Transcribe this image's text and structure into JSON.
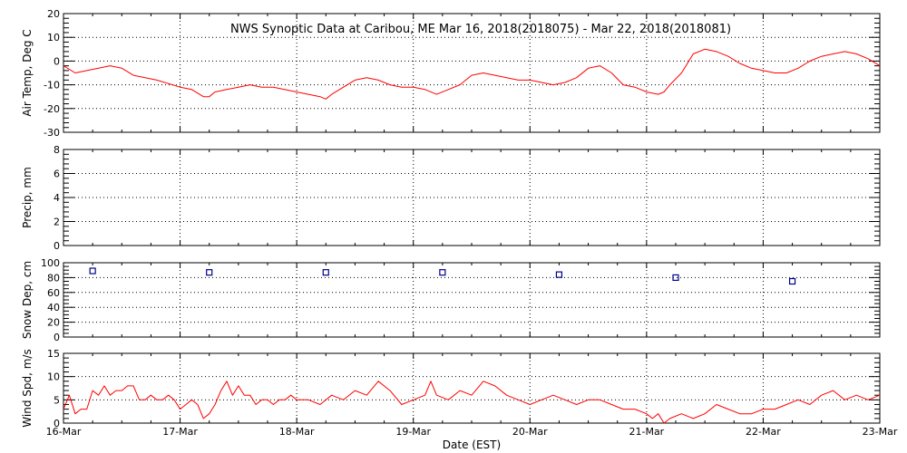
{
  "title": "NWS Synoptic Data at Caribou, ME   Mar 16, 2018(2018075) - Mar 22, 2018(2018081)",
  "xlabel": "Date (EST)",
  "chart_data": {
    "type": "line",
    "x_axis": {
      "ticks": [
        "16-Mar",
        "17-Mar",
        "18-Mar",
        "19-Mar",
        "20-Mar",
        "21-Mar",
        "22-Mar",
        "23-Mar"
      ],
      "range_days": [
        0,
        7
      ]
    },
    "panels": [
      {
        "id": "air_temp",
        "type": "line",
        "ylabel": "Air Temp, Deg C",
        "ylim": [
          -30,
          20
        ],
        "yticks": [
          -30,
          -20,
          -10,
          0,
          10,
          20
        ],
        "minor_step": 2,
        "color": "#ff0000",
        "series": {
          "x": [
            0.0,
            0.1,
            0.2,
            0.3,
            0.4,
            0.5,
            0.6,
            0.8,
            1.0,
            1.1,
            1.2,
            1.25,
            1.3,
            1.4,
            1.5,
            1.6,
            1.7,
            1.8,
            2.0,
            2.1,
            2.2,
            2.25,
            2.3,
            2.4,
            2.5,
            2.6,
            2.7,
            2.8,
            2.9,
            3.0,
            3.1,
            3.2,
            3.3,
            3.4,
            3.5,
            3.6,
            3.7,
            3.8,
            3.9,
            4.0,
            4.1,
            4.2,
            4.3,
            4.4,
            4.5,
            4.6,
            4.7,
            4.8,
            4.9,
            5.0,
            5.1,
            5.15,
            5.2,
            5.3,
            5.4,
            5.5,
            5.6,
            5.7,
            5.8,
            5.9,
            6.0,
            6.1,
            6.2,
            6.3,
            6.4,
            6.5,
            6.6,
            6.7,
            6.8,
            6.9,
            7.0
          ],
          "y": [
            -2,
            -5,
            -4,
            -3,
            -2,
            -3,
            -6,
            -8,
            -11,
            -12,
            -15,
            -15,
            -13,
            -12,
            -11,
            -10,
            -11,
            -11,
            -13,
            -14,
            -15,
            -16,
            -14,
            -11,
            -8,
            -7,
            -8,
            -10,
            -11,
            -11,
            -12,
            -14,
            -12,
            -10,
            -6,
            -5,
            -6,
            -7,
            -8,
            -8,
            -9,
            -10,
            -9,
            -7,
            -3,
            -2,
            -5,
            -10,
            -11,
            -13,
            -14,
            -13,
            -10,
            -5,
            3,
            5,
            4,
            2,
            -1,
            -3,
            -4,
            -5,
            -5,
            -3,
            0,
            2,
            3,
            4,
            3,
            1,
            -2
          ]
        }
      },
      {
        "id": "precip",
        "type": "line",
        "ylabel": "Precip, mm",
        "ylim": [
          0,
          8
        ],
        "yticks": [
          0,
          2,
          4,
          6,
          8
        ],
        "minor_step": 0.4,
        "series": {
          "x": [],
          "y": []
        }
      },
      {
        "id": "snow_depth",
        "type": "scatter",
        "ylabel": "Snow Dep, cm",
        "ylim": [
          0,
          100
        ],
        "yticks": [
          0,
          20,
          40,
          60,
          80,
          100
        ],
        "minor_step": 5,
        "color": "#00008b",
        "series": {
          "x": [
            0.25,
            1.25,
            2.25,
            3.25,
            4.25,
            5.25,
            6.25
          ],
          "y": [
            89,
            87,
            87,
            87,
            84,
            80,
            75
          ]
        }
      },
      {
        "id": "wind_speed",
        "type": "line",
        "ylabel": "Wind Spd, m/s",
        "ylim": [
          0,
          15
        ],
        "yticks": [
          0,
          5,
          10,
          15
        ],
        "minor_step": 1,
        "color": "#ff0000",
        "series": {
          "x": [
            0.0,
            0.05,
            0.1,
            0.15,
            0.2,
            0.25,
            0.3,
            0.35,
            0.4,
            0.45,
            0.5,
            0.55,
            0.6,
            0.65,
            0.7,
            0.75,
            0.8,
            0.85,
            0.9,
            0.95,
            1.0,
            1.05,
            1.1,
            1.15,
            1.2,
            1.25,
            1.3,
            1.35,
            1.4,
            1.45,
            1.5,
            1.55,
            1.6,
            1.65,
            1.7,
            1.75,
            1.8,
            1.85,
            1.9,
            1.95,
            2.0,
            2.1,
            2.2,
            2.3,
            2.4,
            2.5,
            2.6,
            2.7,
            2.8,
            2.9,
            3.0,
            3.1,
            3.15,
            3.2,
            3.3,
            3.4,
            3.5,
            3.6,
            3.7,
            3.8,
            3.9,
            4.0,
            4.1,
            4.2,
            4.3,
            4.4,
            4.5,
            4.6,
            4.7,
            4.8,
            4.9,
            5.0,
            5.05,
            5.1,
            5.15,
            5.2,
            5.3,
            5.4,
            5.5,
            5.6,
            5.7,
            5.8,
            5.9,
            6.0,
            6.1,
            6.2,
            6.3,
            6.4,
            6.5,
            6.6,
            6.7,
            6.8,
            6.9,
            7.0
          ],
          "y": [
            3,
            6,
            2,
            3,
            3,
            7,
            6,
            8,
            6,
            7,
            7,
            8,
            8,
            5,
            5,
            6,
            5,
            5,
            6,
            5,
            3,
            4,
            5,
            4,
            1,
            2,
            4,
            7,
            9,
            6,
            8,
            6,
            6,
            4,
            5,
            5,
            4,
            5,
            5,
            6,
            5,
            5,
            4,
            6,
            5,
            7,
            6,
            9,
            7,
            4,
            5,
            6,
            9,
            6,
            5,
            7,
            6,
            9,
            8,
            6,
            5,
            4,
            5,
            6,
            5,
            4,
            5,
            5,
            4,
            3,
            3,
            2,
            1,
            2,
            0,
            1,
            2,
            1,
            2,
            4,
            3,
            2,
            2,
            3,
            3,
            4,
            5,
            4,
            6,
            7,
            5,
            6,
            5,
            6
          ]
        }
      }
    ]
  }
}
